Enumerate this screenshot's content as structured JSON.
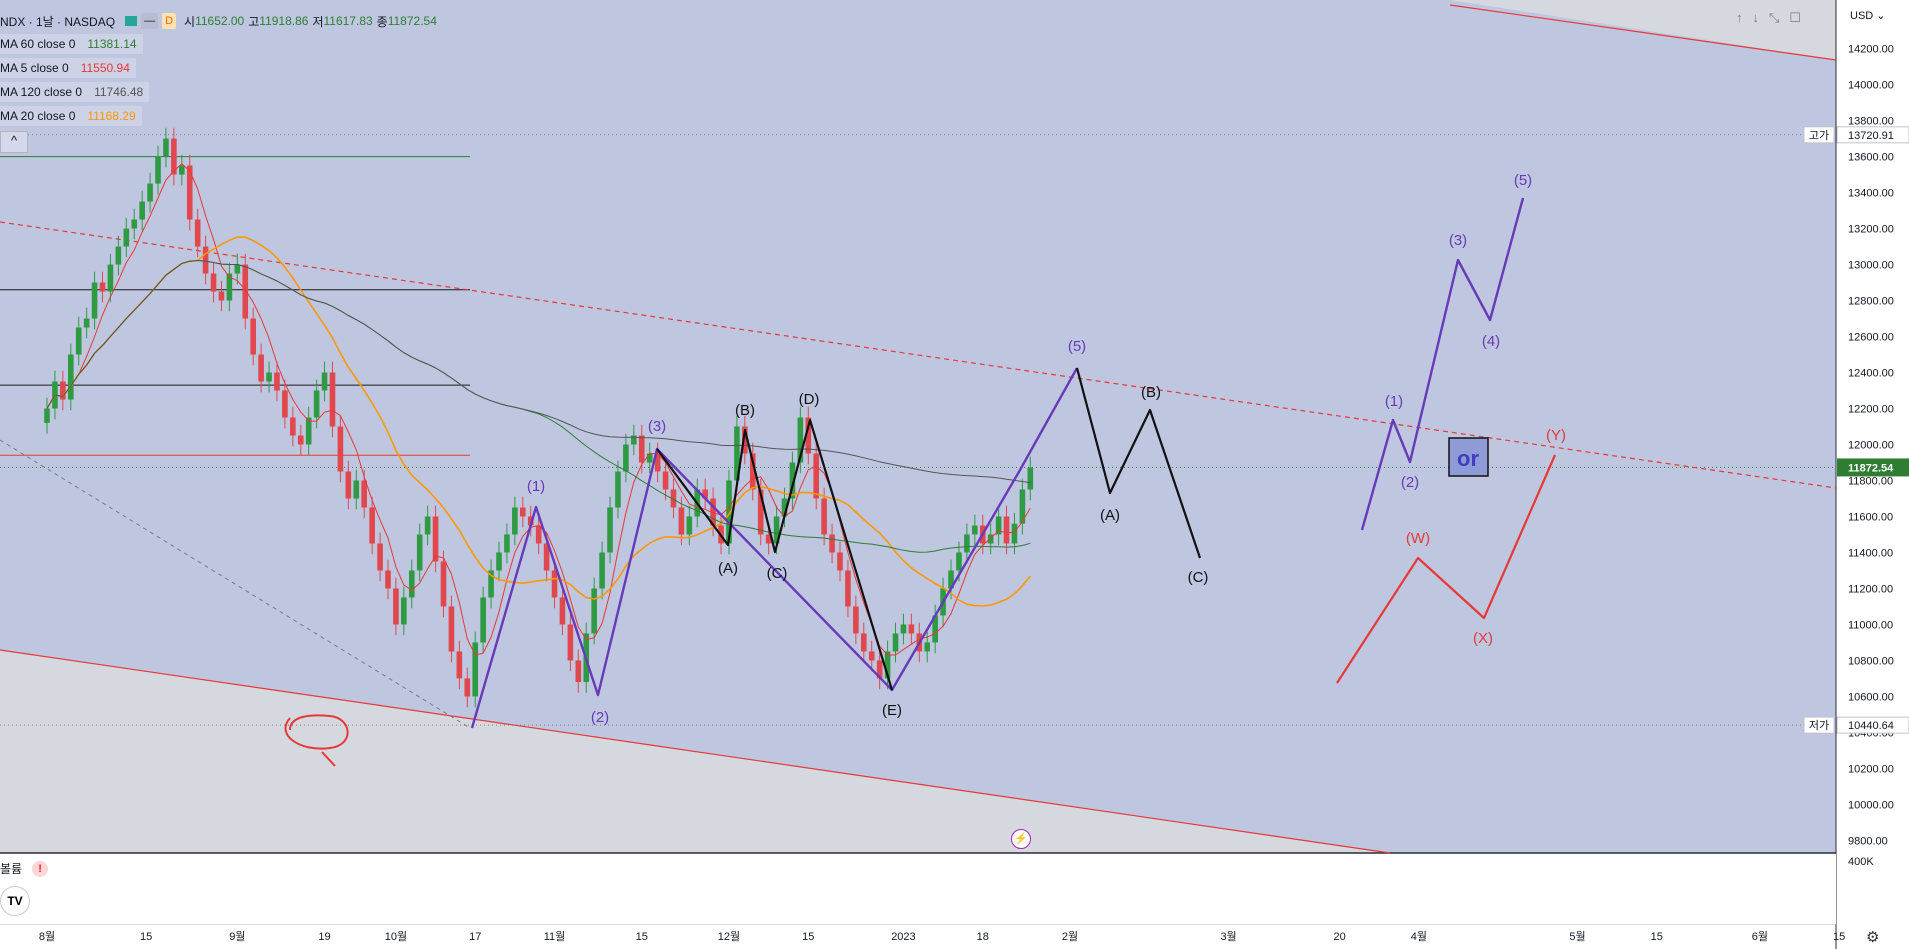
{
  "header": {
    "symbol": "NDX · 1날 · NASDAQ",
    "badge_d": "D",
    "ohlc": [
      {
        "label": "시",
        "value": "11652.00"
      },
      {
        "label": "고",
        "value": "11918.86"
      },
      {
        "label": "저",
        "value": "11617.83"
      },
      {
        "label": "종",
        "value": "11872.54"
      }
    ]
  },
  "legend": [
    {
      "name": "MA 60 close 0",
      "value": "11381.14",
      "color": "#2e7d32"
    },
    {
      "name": "MA 5 close 0",
      "value": "11550.94",
      "color": "#e53935"
    },
    {
      "name": "MA 120 close 0",
      "value": "11746.48",
      "color": "#555555"
    },
    {
      "name": "MA 20 close 0",
      "value": "11168.29",
      "color": "#ff9800"
    }
  ],
  "currency": "USD",
  "collapse_label": "^",
  "sub_pane": {
    "label": "볼륨",
    "warn": "!",
    "scale_label": "400K"
  },
  "logo": "TV",
  "flash_icon": "⚡",
  "gear_icon": "⚙",
  "toolbar_icons": [
    "↑",
    "↓",
    "⤡",
    "☐"
  ],
  "or_label": "or",
  "colors": {
    "bg_zone": "#bfc6e0",
    "bg_outer": "#d6d8e0",
    "red": "#e53935",
    "purple": "#673ab7",
    "green": "#26a69a"
  },
  "chart_data": {
    "type": "candlestick",
    "symbol": "NDX",
    "y_ticks": [
      14200,
      14000,
      13800,
      13600,
      13400,
      13200,
      13000,
      12800,
      12600,
      12400,
      12200,
      12000,
      11800,
      11600,
      11400,
      11200,
      11000,
      10800,
      10600,
      10400,
      10200,
      10000,
      9800
    ],
    "ylim": [
      9730,
      14470
    ],
    "x_labels": [
      {
        "t": 0,
        "label": "8월"
      },
      {
        "t": 12.5,
        "label": "15"
      },
      {
        "t": 24,
        "label": "9월"
      },
      {
        "t": 35,
        "label": "19"
      },
      {
        "t": 44,
        "label": "10월"
      },
      {
        "t": 54,
        "label": "17"
      },
      {
        "t": 64,
        "label": "11월"
      },
      {
        "t": 75,
        "label": "15"
      },
      {
        "t": 86,
        "label": "12월"
      },
      {
        "t": 96,
        "label": "15"
      },
      {
        "t": 108,
        "label": "2023"
      },
      {
        "t": 118,
        "label": "18"
      },
      {
        "t": 129,
        "label": "2월"
      },
      {
        "t": 149,
        "label": "3월"
      },
      {
        "t": 163,
        "label": "20"
      },
      {
        "t": 173,
        "label": "4월"
      },
      {
        "t": 193,
        "label": "5월"
      },
      {
        "t": 203,
        "label": "15"
      },
      {
        "t": 216,
        "label": "6월"
      },
      {
        "t": 226,
        "label": "15"
      }
    ],
    "last_price": "11872.54",
    "high_label": {
      "label": "고가",
      "value": "13720.91",
      "price": 13720.91
    },
    "low_label": {
      "label": "저가",
      "value": "10440.64",
      "price": 10440.64
    },
    "closes": [
      12200,
      12350,
      12250,
      12500,
      12650,
      12700,
      12900,
      12850,
      13000,
      13100,
      13200,
      13250,
      13350,
      13450,
      13600,
      13700,
      13500,
      13550,
      13250,
      13100,
      12950,
      12850,
      12800,
      12950,
      13000,
      12700,
      12500,
      12350,
      12400,
      12300,
      12150,
      12050,
      12000,
      12150,
      12300,
      12400,
      12100,
      11850,
      11700,
      11800,
      11650,
      11450,
      11300,
      11200,
      11000,
      11150,
      11300,
      11500,
      11600,
      11350,
      11100,
      10850,
      10700,
      10600,
      10900,
      11150,
      11300,
      11400,
      11500,
      11650,
      11600,
      11550,
      11450,
      11300,
      11150,
      11000,
      10800,
      10680,
      10950,
      11200,
      11400,
      11650,
      11850,
      12000,
      12050,
      11900,
      11950,
      11850,
      11750,
      11650,
      11500,
      11600,
      11750,
      11700,
      11550,
      11450,
      11800,
      12100,
      11950,
      11750,
      11500,
      11450,
      11600,
      11700,
      11900,
      12150,
      11950,
      11700,
      11500,
      11400,
      11300,
      11100,
      10950,
      10850,
      10800,
      10700,
      10850,
      10950,
      11000,
      10950,
      10850,
      10900,
      11050,
      11200,
      11300,
      11400,
      11500,
      11550,
      11450,
      11500,
      11600,
      11450,
      11560,
      11750,
      11872.54
    ],
    "annotations": {
      "purple_wave_labels": [
        "(1)",
        "(2)",
        "(3)",
        "(4)",
        "(5)"
      ],
      "black_labels": [
        "(A)",
        "(B)",
        "(C)",
        "(D)",
        "(E)"
      ],
      "red_labels": [
        "(W)",
        "(X)",
        "(Y)"
      ]
    }
  }
}
